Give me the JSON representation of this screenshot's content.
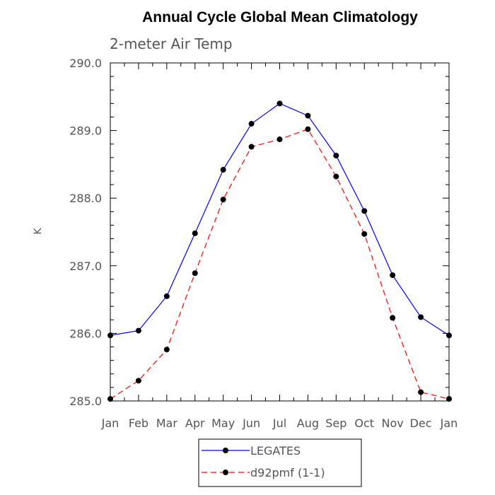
{
  "chart_data": {
    "type": "line",
    "title": "Annual Cycle Global Mean Climatology",
    "subtitle": "2-meter Air Temp",
    "xlabel": "",
    "ylabel": "K",
    "categories": [
      "Jan",
      "Feb",
      "Mar",
      "Apr",
      "May",
      "Jun",
      "Jul",
      "Aug",
      "Sep",
      "Oct",
      "Nov",
      "Dec",
      "Jan"
    ],
    "ylim": [
      285.0,
      290.0
    ],
    "yticks": [
      "285.0",
      "286.0",
      "287.0",
      "288.0",
      "289.0",
      "290.0"
    ],
    "grid": false,
    "legend_position": "bottom",
    "series": [
      {
        "name": "LEGATES",
        "color": "#0000ff",
        "dash": "solid",
        "marker_color": "#000000",
        "values": [
          285.97,
          286.04,
          286.55,
          287.48,
          288.42,
          289.1,
          289.4,
          289.22,
          288.63,
          287.81,
          286.86,
          286.24,
          285.97
        ]
      },
      {
        "name": "d92pmf (1-1)",
        "color": "#ff0000",
        "dash": "dashed",
        "marker_color": "#000000",
        "values": [
          285.03,
          285.3,
          285.76,
          286.89,
          287.98,
          288.76,
          288.87,
          289.02,
          288.32,
          287.47,
          286.23,
          285.13,
          285.03
        ]
      }
    ]
  }
}
